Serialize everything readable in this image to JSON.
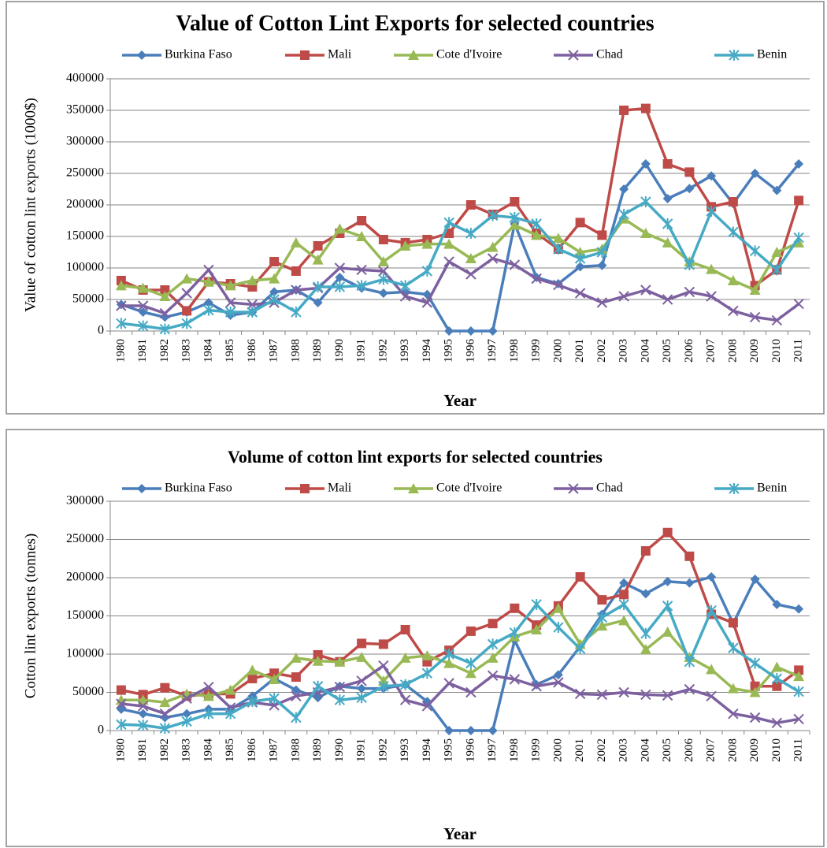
{
  "chart_data": [
    {
      "type": "line",
      "title": "Value of Cotton Lint Exports for selected countries",
      "x_label": "Year",
      "y_label": "Value of cotton lint exports (1000$)",
      "categories": [
        "1980",
        "1981",
        "1982",
        "1983",
        "1984",
        "1985",
        "1986",
        "1987",
        "1988",
        "1989",
        "1990",
        "1991",
        "1992",
        "1993",
        "1994",
        "1995",
        "1996",
        "1997",
        "1998",
        "1999",
        "2000",
        "2001",
        "2002",
        "2003",
        "2004",
        "2005",
        "2006",
        "2007",
        "2008",
        "2009",
        "2010",
        "2011"
      ],
      "ylim": [
        0,
        400000
      ],
      "yticks": [
        0,
        50000,
        100000,
        150000,
        200000,
        250000,
        300000,
        350000,
        400000
      ],
      "grid": true,
      "series": [
        {
          "name": "Burkina Faso",
          "color": "#4a7ebb",
          "marker": "diamond",
          "values": [
            42000,
            30000,
            22000,
            30000,
            45000,
            25000,
            30000,
            62000,
            65000,
            45000,
            85000,
            68000,
            60000,
            62000,
            58000,
            0,
            0,
            0,
            170000,
            85000,
            75000,
            102000,
            104000,
            225000,
            265000,
            210000,
            226000,
            246000,
            202000,
            250000,
            223000,
            265000
          ]
        },
        {
          "name": "Mali",
          "color": "#be4b48",
          "marker": "square",
          "values": [
            80000,
            65000,
            65000,
            32000,
            78000,
            75000,
            70000,
            110000,
            95000,
            135000,
            155000,
            175000,
            145000,
            140000,
            145000,
            155000,
            200000,
            185000,
            205000,
            155000,
            130000,
            172000,
            152000,
            350000,
            353000,
            265000,
            252000,
            197000,
            205000,
            72000,
            97000,
            207000
          ]
        },
        {
          "name": "Cote d'Ivoire",
          "color": "#98b954",
          "marker": "triangle",
          "values": [
            72000,
            68000,
            55000,
            83000,
            78000,
            72000,
            80000,
            83000,
            140000,
            113000,
            162000,
            150000,
            110000,
            135000,
            138000,
            138000,
            115000,
            133000,
            168000,
            152000,
            147000,
            125000,
            130000,
            178000,
            155000,
            140000,
            110000,
            98000,
            80000,
            65000,
            125000,
            140000
          ]
        },
        {
          "name": "Chad",
          "color": "#7d60a0",
          "marker": "x",
          "values": [
            40000,
            40000,
            28000,
            60000,
            97000,
            45000,
            42000,
            45000,
            65000,
            68000,
            100000,
            97000,
            95000,
            55000,
            45000,
            110000,
            90000,
            115000,
            105000,
            83000,
            73000,
            60000,
            45000,
            55000,
            65000,
            50000,
            62000,
            55000,
            32000,
            22000,
            17000,
            43000
          ]
        },
        {
          "name": "Benin",
          "color": "#46aac5",
          "marker": "star",
          "values": [
            12000,
            8000,
            3000,
            12000,
            33000,
            30000,
            30000,
            50000,
            30000,
            70000,
            70000,
            72000,
            82000,
            72000,
            95000,
            172000,
            155000,
            183000,
            180000,
            170000,
            130000,
            115000,
            125000,
            185000,
            205000,
            170000,
            105000,
            190000,
            157000,
            127000,
            97000,
            148000
          ]
        }
      ]
    },
    {
      "type": "line",
      "title": "Volume of cotton lint exports for selected countries",
      "x_label": "Year",
      "y_label": "Cotton lint exports (tonnes)",
      "categories": [
        "1980",
        "1981",
        "1982",
        "1983",
        "1984",
        "1985",
        "1986",
        "1987",
        "1988",
        "1989",
        "1990",
        "1991",
        "1992",
        "1993",
        "1994",
        "1995",
        "1996",
        "1997",
        "1998",
        "1999",
        "2000",
        "2001",
        "2002",
        "2003",
        "2004",
        "2005",
        "2006",
        "2007",
        "2008",
        "2009",
        "2010",
        "2011"
      ],
      "ylim": [
        0,
        300000
      ],
      "yticks": [
        0,
        50000,
        100000,
        150000,
        200000,
        250000,
        300000
      ],
      "grid": true,
      "series": [
        {
          "name": "Burkina Faso",
          "color": "#4a7ebb",
          "marker": "diamond",
          "values": [
            28000,
            22000,
            17000,
            22000,
            28000,
            28000,
            45000,
            68000,
            53000,
            43000,
            58000,
            55000,
            55000,
            60000,
            38000,
            0,
            0,
            0,
            118000,
            60000,
            73000,
            110000,
            152000,
            193000,
            179000,
            195000,
            193000,
            201000,
            140000,
            198000,
            165000,
            159000
          ]
        },
        {
          "name": "Mali",
          "color": "#be4b48",
          "marker": "square",
          "values": [
            53000,
            47000,
            56000,
            45000,
            48000,
            48000,
            68000,
            75000,
            70000,
            99000,
            90000,
            114000,
            113000,
            132000,
            90000,
            105000,
            130000,
            140000,
            160000,
            138000,
            163000,
            201000,
            171000,
            178000,
            235000,
            259000,
            228000,
            152000,
            141000,
            58000,
            58000,
            79000
          ]
        },
        {
          "name": "Cote d'Ivoire",
          "color": "#98b954",
          "marker": "triangle",
          "values": [
            40000,
            40000,
            37000,
            48000,
            45000,
            53000,
            79000,
            67000,
            95000,
            91000,
            90000,
            96000,
            65000,
            95000,
            98000,
            88000,
            75000,
            95000,
            123000,
            132000,
            160000,
            113000,
            137000,
            144000,
            106000,
            129000,
            96000,
            80000,
            55000,
            50000,
            83000,
            71000
          ]
        },
        {
          "name": "Chad",
          "color": "#7d60a0",
          "marker": "x",
          "values": [
            35000,
            32000,
            22000,
            42000,
            57000,
            30000,
            37000,
            33000,
            45000,
            50000,
            57000,
            65000,
            85000,
            40000,
            32000,
            62000,
            50000,
            72000,
            67000,
            58000,
            63000,
            48000,
            47000,
            50000,
            47000,
            46000,
            54000,
            45000,
            22000,
            17000,
            10000,
            15000
          ]
        },
        {
          "name": "Benin",
          "color": "#46aac5",
          "marker": "star",
          "values": [
            8000,
            7000,
            3000,
            12000,
            22000,
            22000,
            38000,
            42000,
            17000,
            58000,
            40000,
            43000,
            58000,
            60000,
            75000,
            100000,
            88000,
            113000,
            128000,
            165000,
            135000,
            107000,
            148000,
            165000,
            127000,
            163000,
            90000,
            157000,
            108000,
            88000,
            68000,
            51000
          ]
        }
      ]
    }
  ]
}
